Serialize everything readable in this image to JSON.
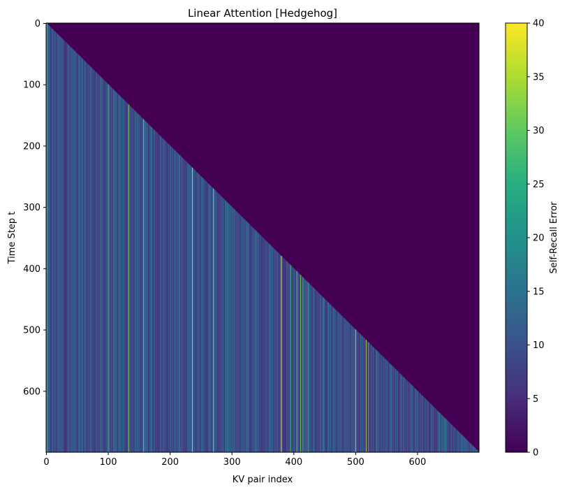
{
  "chart_data": {
    "type": "heatmap",
    "title": "Linear Attention [Hedgehog]",
    "xlabel": "KV pair index",
    "ylabel": "Time Step t",
    "xlim": [
      0,
      700
    ],
    "ylim": [
      700,
      0
    ],
    "xticks": [
      0,
      100,
      200,
      300,
      400,
      500,
      600
    ],
    "yticks": [
      0,
      100,
      200,
      300,
      400,
      500,
      600
    ],
    "structure": "lower-triangular: value for KV pair i is shown for time steps t >= i, zero above the diagonal",
    "colorbar": {
      "label": "Self-Recall Error",
      "colormap": "viridis",
      "range": [
        0,
        40
      ],
      "ticks": [
        0,
        5,
        10,
        15,
        20,
        25,
        30,
        35,
        40
      ]
    },
    "column_value_range": [
      0,
      40
    ],
    "typical_column_values": [
      5,
      14
    ],
    "highlight_columns": [
      {
        "x": 1,
        "value": 28
      },
      {
        "x": 100,
        "value": 27
      },
      {
        "x": 133,
        "value": 33
      },
      {
        "x": 157,
        "value": 30
      },
      {
        "x": 236,
        "value": 36
      },
      {
        "x": 270,
        "value": 33
      },
      {
        "x": 380,
        "value": 38
      },
      {
        "x": 395,
        "value": 28
      },
      {
        "x": 405,
        "value": 30
      },
      {
        "x": 411,
        "value": 32
      },
      {
        "x": 415,
        "value": 27
      },
      {
        "x": 424,
        "value": 25
      },
      {
        "x": 500,
        "value": 36
      },
      {
        "x": 517,
        "value": 35
      },
      {
        "x": 521,
        "value": 29
      }
    ]
  }
}
